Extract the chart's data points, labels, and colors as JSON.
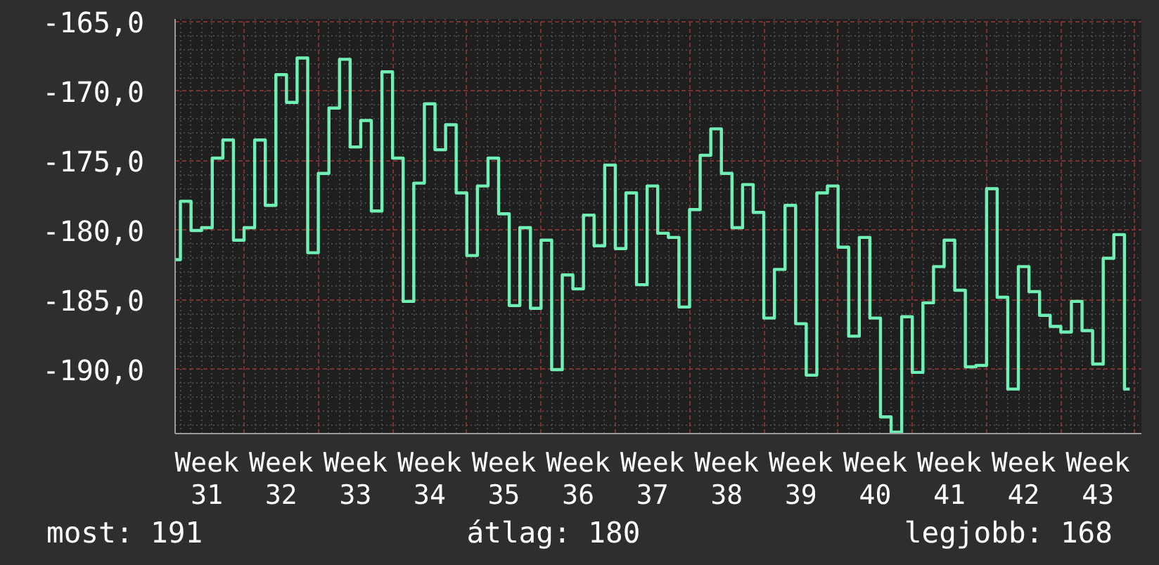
{
  "chart_data": {
    "type": "step",
    "categories": [
      null,
      null,
      null,
      "Week 31",
      null,
      null,
      null,
      null,
      null,
      null,
      "Week 32",
      null,
      null,
      null,
      null,
      null,
      null,
      "Week 33",
      null,
      null,
      null,
      null,
      null,
      null,
      "Week 34",
      null,
      null,
      null,
      null,
      null,
      null,
      "Week 35",
      null,
      null,
      null,
      null,
      null,
      null,
      "Week 36",
      null,
      null,
      null,
      null,
      null,
      null,
      "Week 37",
      null,
      null,
      null,
      null,
      null,
      null,
      "Week 38",
      null,
      null,
      null,
      null,
      null,
      null,
      "Week 39",
      null,
      null,
      null,
      null,
      null,
      null,
      "Week 40",
      null,
      null,
      null,
      null,
      null,
      null,
      "Week 41",
      null,
      null,
      null,
      null,
      null,
      null,
      "Week 42",
      null,
      null,
      null,
      null,
      null,
      null,
      "Week 43",
      null,
      null,
      null
    ],
    "series": [
      {
        "color": "#70f0b4",
        "values": [
          -182.1,
          -177.9,
          -180.0,
          -179.8,
          -174.8,
          -173.5,
          -180.7,
          -179.8,
          -173.5,
          -178.2,
          -168.8,
          -170.8,
          -167.6,
          -181.6,
          -175.9,
          -171.2,
          -167.7,
          -174.0,
          -172.1,
          -178.6,
          -168.6,
          -174.8,
          -185.1,
          -176.6,
          -170.9,
          -174.2,
          -172.4,
          -177.3,
          -181.8,
          -176.8,
          -174.8,
          -178.8,
          -185.4,
          -179.8,
          -185.6,
          -180.7,
          -190.0,
          -183.2,
          -184.2,
          -178.9,
          -181.1,
          -175.3,
          -181.3,
          -177.3,
          -183.9,
          -176.8,
          -180.2,
          -180.5,
          -185.5,
          -178.5,
          -174.6,
          -172.7,
          -175.9,
          -179.8,
          -176.7,
          -178.7,
          -186.3,
          -182.8,
          -178.2,
          -186.7,
          -190.4,
          -177.3,
          -176.8,
          -181.2,
          -187.6,
          -180.5,
          -186.3,
          -193.4,
          -194.5,
          -186.2,
          -190.2,
          -185.2,
          -182.6,
          -180.7,
          -184.3,
          -189.8,
          -189.7,
          -177.0,
          -184.8,
          -191.4,
          -182.6,
          -184.4,
          -186.1,
          -186.9,
          -187.3,
          -185.1,
          -187.2,
          -189.6,
          -182.0,
          -180.3,
          -191.4
        ]
      }
    ],
    "ylim": [
      -194.6,
      -164.8
    ],
    "yticks": [
      {
        "value": -190,
        "label": "-190,0"
      },
      {
        "value": -185,
        "label": "-185,0"
      },
      {
        "value": -180,
        "label": "-180,0"
      },
      {
        "value": -175,
        "label": "-175,0"
      },
      {
        "value": -170,
        "label": "-170,0"
      },
      {
        "value": -165,
        "label": "-165,0"
      }
    ],
    "grid": true,
    "annotations": [
      "most: 191",
      "átlag: 180",
      "legjobb: 168"
    ]
  }
}
